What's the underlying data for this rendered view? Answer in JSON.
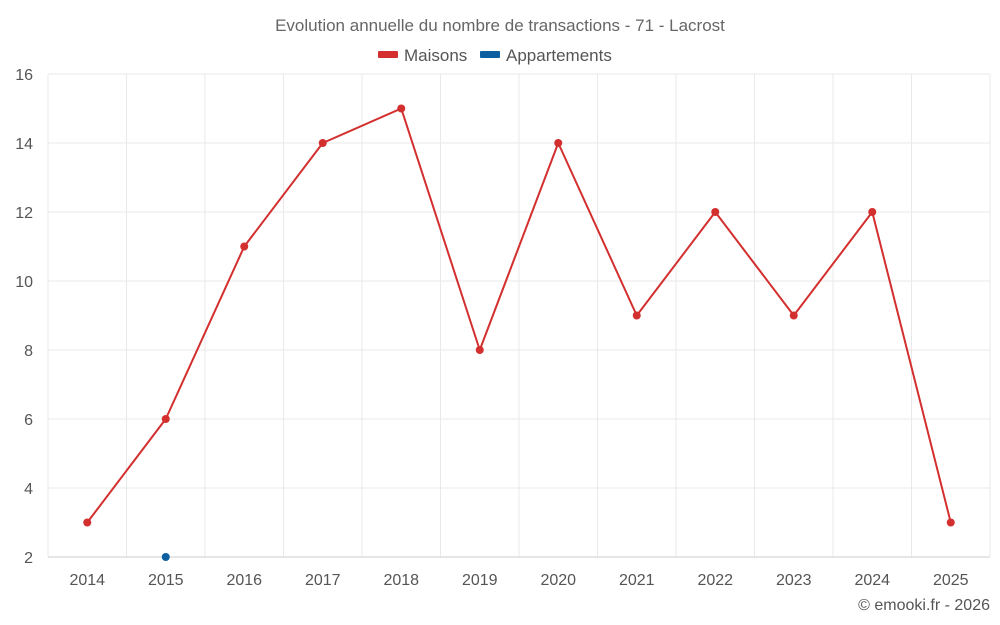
{
  "chart_data": {
    "type": "line",
    "title": "Evolution annuelle du nombre de transactions - 71 - Lacrost",
    "categories": [
      "2014",
      "2015",
      "2016",
      "2017",
      "2018",
      "2019",
      "2020",
      "2021",
      "2022",
      "2023",
      "2024",
      "2025"
    ],
    "series": [
      {
        "name": "Maisons",
        "color": "#d32f2f",
        "values": [
          3,
          6,
          11,
          14,
          15,
          8,
          14,
          9,
          12,
          9,
          12,
          3
        ]
      },
      {
        "name": "Appartements",
        "color": "#0d5fa0",
        "values": [
          null,
          2,
          null,
          null,
          null,
          null,
          null,
          null,
          null,
          null,
          null,
          null
        ]
      }
    ],
    "ylim": [
      2,
      16
    ],
    "yticks": [
      "2",
      "4",
      "6",
      "8",
      "10",
      "12",
      "14",
      "16"
    ],
    "xlabel": "",
    "ylabel": "",
    "grid": true,
    "legend": "top-center"
  },
  "credit": "© emooki.fr - 2026"
}
